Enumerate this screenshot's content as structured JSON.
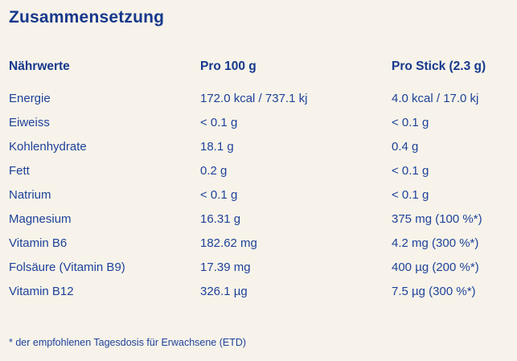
{
  "page": {
    "title": "Zusammensetzung",
    "background_color": "#f7f3ea",
    "text_color": "#1e429a",
    "heading_color": "#16388c"
  },
  "table": {
    "headers": [
      "Nährwerte",
      "Pro 100 g",
      "Pro Stick (2.3 g)"
    ],
    "rows": [
      {
        "label": "Energie",
        "per_100g": "172.0 kcal / 737.1 kj",
        "per_stick": "4.0 kcal / 17.0 kj"
      },
      {
        "label": "Eiweiss",
        "per_100g": "< 0.1 g",
        "per_stick": "< 0.1 g"
      },
      {
        "label": "Kohlenhydrate",
        "per_100g": "18.1 g",
        "per_stick": "0.4 g"
      },
      {
        "label": "Fett",
        "per_100g": "0.2 g",
        "per_stick": "< 0.1 g"
      },
      {
        "label": "Natrium",
        "per_100g": "< 0.1 g",
        "per_stick": "< 0.1 g"
      },
      {
        "label": "Magnesium",
        "per_100g": "16.31 g",
        "per_stick": "375 mg (100 %*)"
      },
      {
        "label": "Vitamin B6",
        "per_100g": "182.62 mg",
        "per_stick": "4.2 mg (300 %*)"
      },
      {
        "label": "Folsäure (Vitamin B9)",
        "per_100g": "17.39 mg",
        "per_stick": "400 µg (200 %*)"
      },
      {
        "label": "Vitamin B12",
        "per_100g": "326.1 µg",
        "per_stick": "7.5 µg (300 %*)"
      }
    ]
  },
  "footnote": "* der empfohlenen Tagesdosis für Erwachsene (ETD)"
}
